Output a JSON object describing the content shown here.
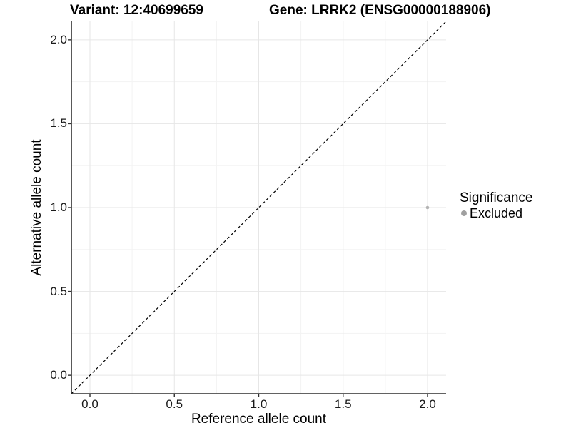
{
  "chart_data": {
    "type": "scatter",
    "title_variant": "Variant: 12:40699659",
    "title_gene": "Gene: LRRK2 (ENSG00000188906)",
    "xlabel": "Reference allele count",
    "ylabel": "Alternative allele count",
    "xlim": [
      -0.11,
      2.11
    ],
    "ylim": [
      -0.11,
      2.11
    ],
    "x_ticks": {
      "values": [
        0,
        0.5,
        1,
        1.5,
        2
      ],
      "labels": [
        "0.0",
        "0.5",
        "1.0",
        "1.5",
        "2.0"
      ]
    },
    "y_ticks": {
      "values": [
        0,
        0.5,
        1,
        1.5,
        2
      ],
      "labels": [
        "0.0",
        "0.5",
        "1.0",
        "1.5",
        "2.0"
      ]
    },
    "minor_ticks": [
      0.25,
      0.75,
      1.25,
      1.75
    ],
    "grid": true,
    "reference_line": {
      "slope": 1,
      "intercept": 0,
      "style": "dashed",
      "color": "#000000"
    },
    "series": [
      {
        "name": "Excluded",
        "color": "#b3b3b3",
        "point_radius": 2.3,
        "points": [
          [
            2,
            1
          ]
        ]
      }
    ],
    "legend": {
      "title": "Significance",
      "position": "right",
      "items": [
        {
          "label": "Excluded",
          "color": "#a0a0a0"
        }
      ]
    }
  }
}
